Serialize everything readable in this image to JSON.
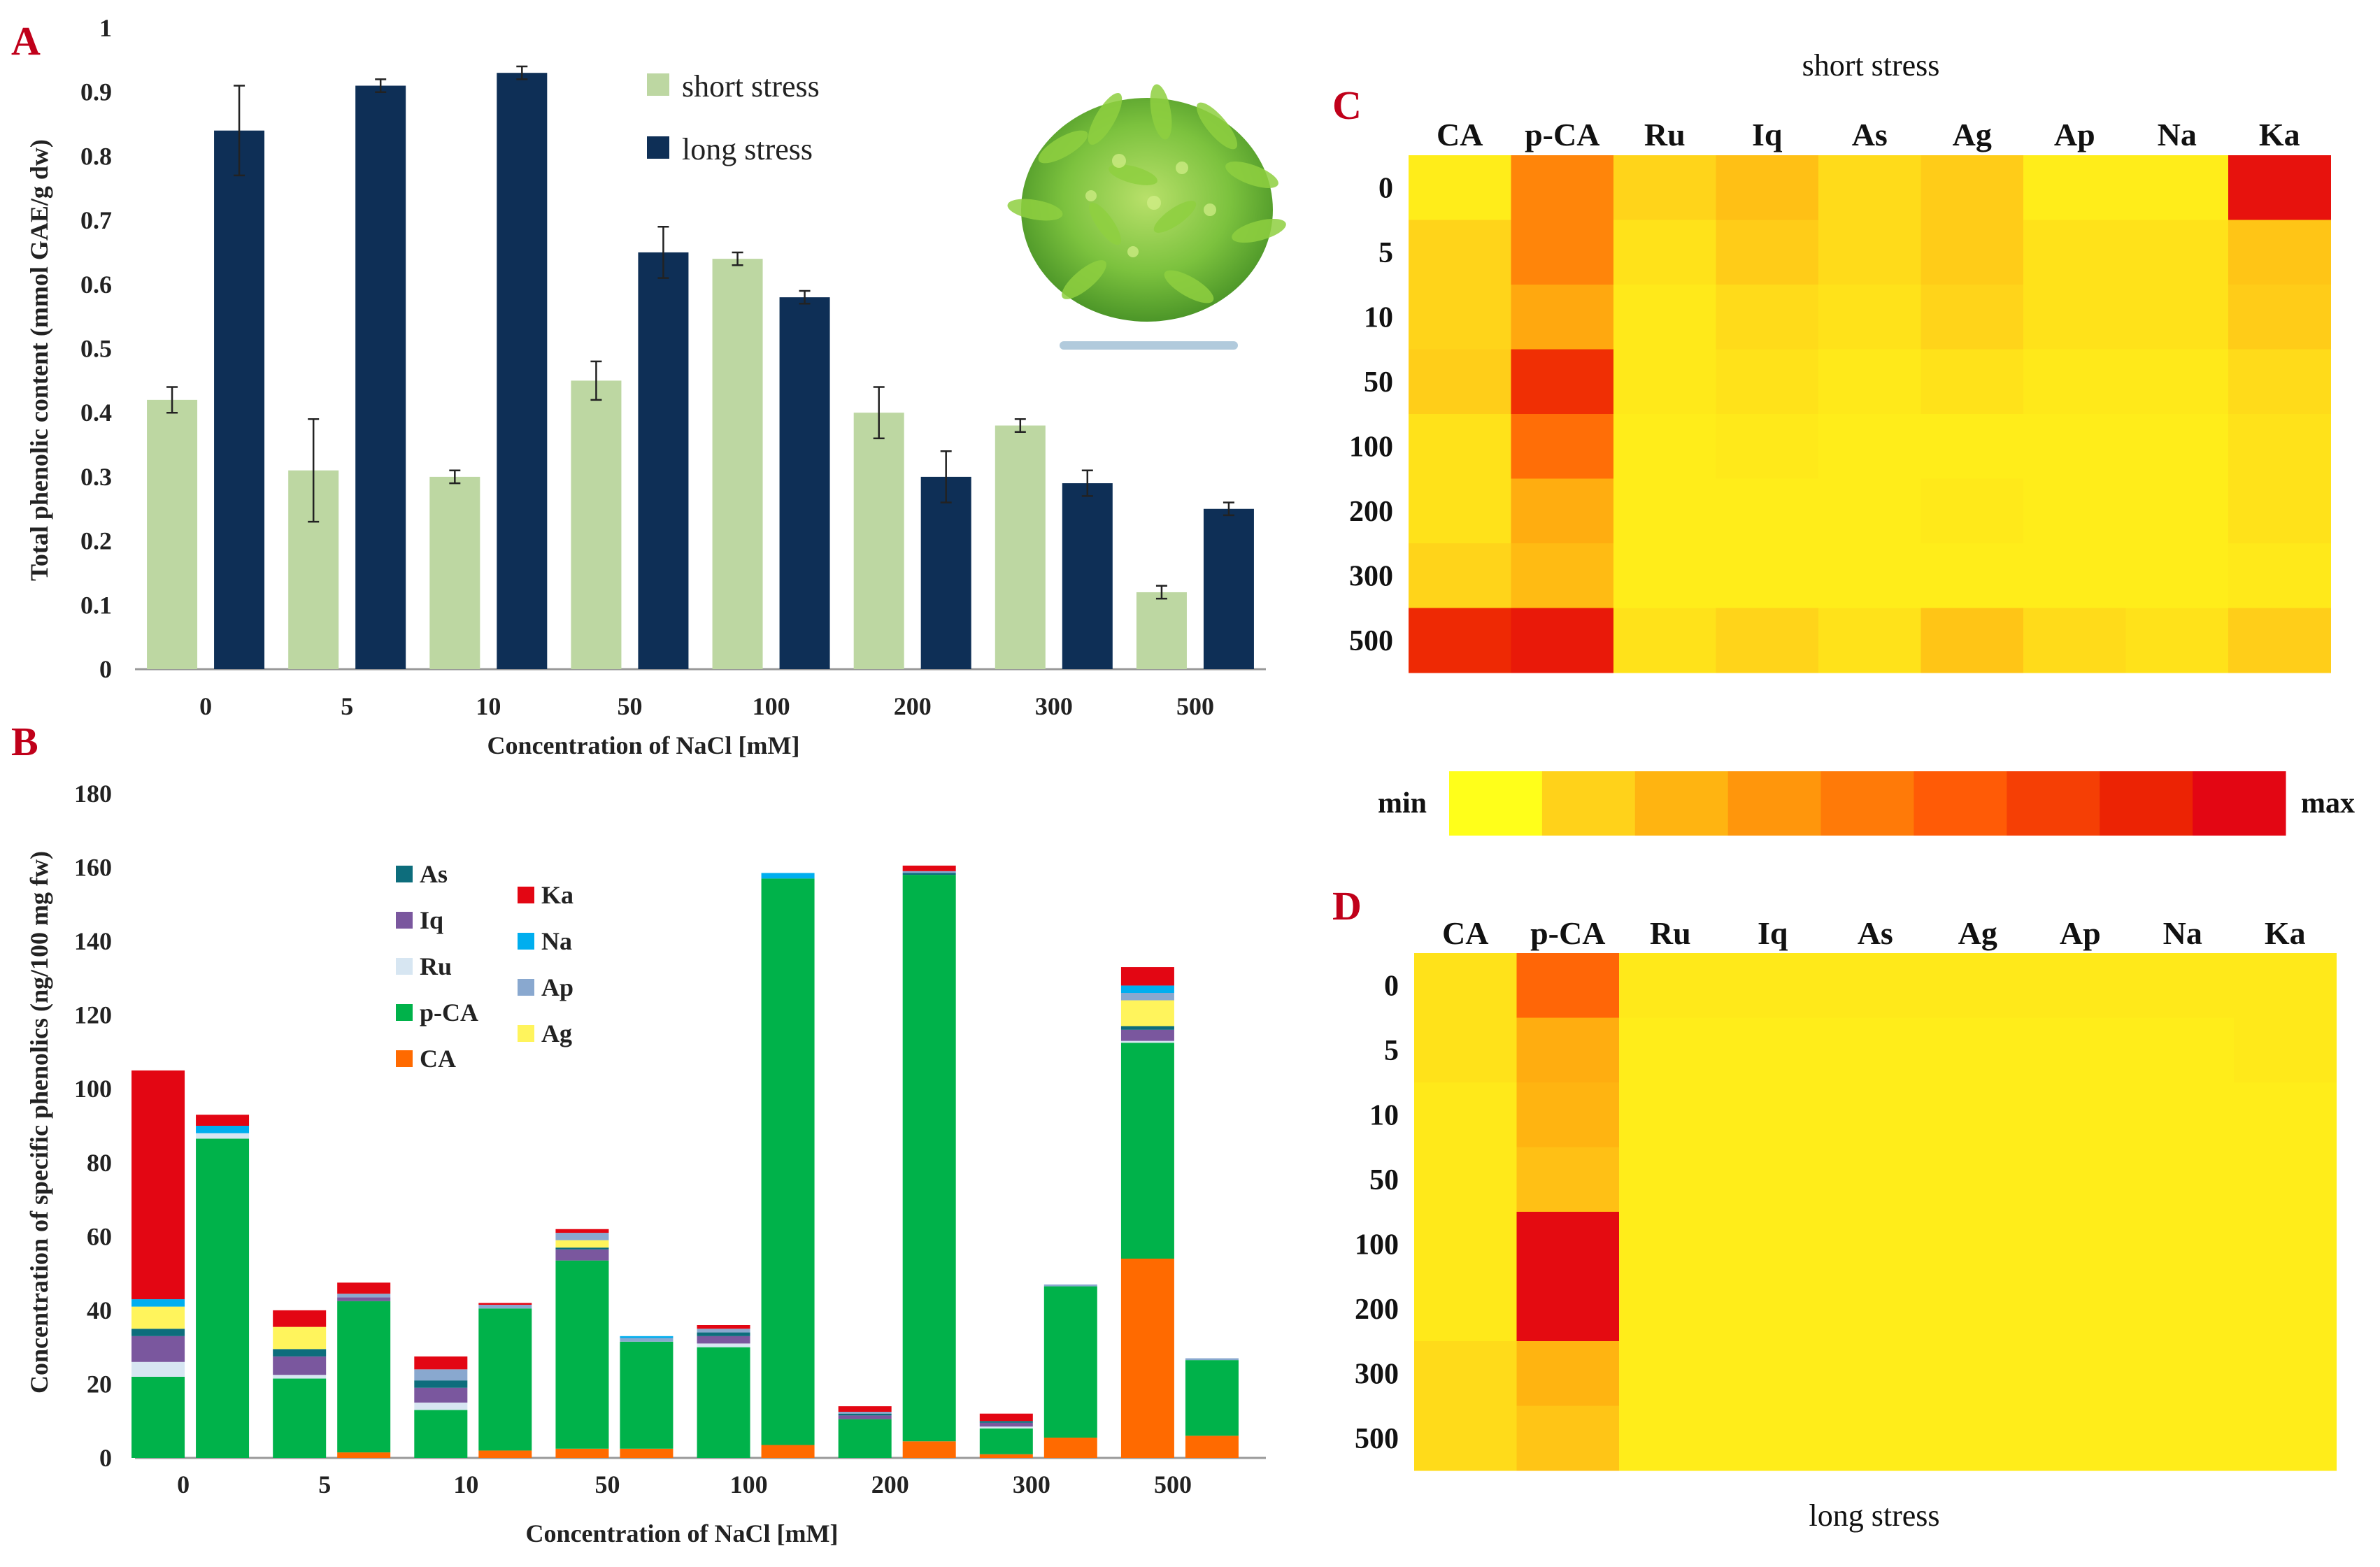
{
  "panels": {
    "A": "A",
    "B": "B",
    "C": "C",
    "D": "D"
  },
  "chart_data": [
    {
      "id": "A",
      "type": "bar",
      "title": "",
      "xlabel": "Concentration of NaCl [mM]",
      "ylabel": "Total phenolic content (mmol  GAE/g dw)",
      "categories": [
        "0",
        "5",
        "10",
        "50",
        "100",
        "200",
        "300",
        "500"
      ],
      "yticks": [
        "0",
        "0.1",
        "0.2",
        "0.3",
        "0.4",
        "0.5",
        "0.6",
        "0.7",
        "0.8",
        "0.9",
        "1"
      ],
      "ylim": [
        0,
        1
      ],
      "series": [
        {
          "name": "short stress",
          "color": "#bdd7a2",
          "values": [
            0.42,
            0.31,
            0.3,
            0.45,
            0.64,
            0.4,
            0.38,
            0.12
          ],
          "errors": [
            0.02,
            0.08,
            0.01,
            0.03,
            0.01,
            0.04,
            0.01,
            0.01
          ]
        },
        {
          "name": "long stress",
          "color": "#0e2f56",
          "values": [
            0.84,
            0.91,
            0.93,
            0.65,
            0.58,
            0.3,
            0.29,
            0.25
          ],
          "errors": [
            0.07,
            0.01,
            0.01,
            0.04,
            0.01,
            0.04,
            0.02,
            0.01
          ]
        }
      ],
      "legend_position": "top-right",
      "inset_image": "plant-photo"
    },
    {
      "id": "B",
      "type": "stacked-bar",
      "xlabel": "Concentration of NaCl [mM]",
      "ylabel": "Concentration of specific phenolics (ng/100 mg fw)",
      "categories": [
        "0",
        "5",
        "10",
        "50",
        "100",
        "200",
        "300",
        "500"
      ],
      "yticks": [
        "0",
        "20",
        "40",
        "60",
        "80",
        "100",
        "120",
        "140",
        "160",
        "180"
      ],
      "ylim": [
        0,
        180
      ],
      "stack_order": [
        "CA",
        "p-CA",
        "Ru",
        "Iq",
        "As",
        "Ag",
        "Ap",
        "Na",
        "Ka"
      ],
      "legend": [
        {
          "name": "As",
          "color": "#0d6d7c"
        },
        {
          "name": "Iq",
          "color": "#7a579e"
        },
        {
          "name": "Ru",
          "color": "#d7e6f2"
        },
        {
          "name": "p-CA",
          "color": "#00b24a"
        },
        {
          "name": "CA",
          "color": "#ff6a00"
        },
        {
          "name": "Ka",
          "color": "#e30613"
        },
        {
          "name": "Na",
          "color": "#00aeef"
        },
        {
          "name": "Ap",
          "color": "#89a8cf"
        },
        {
          "name": "Ag",
          "color": "#fff45c"
        }
      ],
      "short_stress": [
        {
          "CA": 0,
          "p-CA": 22,
          "Ru": 4,
          "Iq": 7,
          "As": 2,
          "Ag": 6,
          "Ap": 0,
          "Na": 2,
          "Ka": 62
        },
        {
          "CA": 0,
          "p-CA": 21.5,
          "Ru": 1,
          "Iq": 5,
          "As": 2,
          "Ag": 6,
          "Ap": 0,
          "Na": 0,
          "Ka": 4.5
        },
        {
          "CA": 0,
          "p-CA": 13,
          "Ru": 2,
          "Iq": 4,
          "As": 2,
          "Ag": 0,
          "Ap": 3,
          "Na": 0,
          "Ka": 3.5
        },
        {
          "CA": 2.5,
          "p-CA": 51,
          "Ru": 0,
          "Iq": 3,
          "As": 0.5,
          "Ag": 2,
          "Ap": 2,
          "Na": 0,
          "Ka": 1
        },
        {
          "CA": 0,
          "p-CA": 30,
          "Ru": 1,
          "Iq": 2,
          "As": 1,
          "Ag": 0,
          "Ap": 1,
          "Na": 0,
          "Ka": 1
        },
        {
          "CA": 0,
          "p-CA": 10.5,
          "Ru": 0,
          "Iq": 1,
          "As": 0.5,
          "Ag": 0,
          "Ap": 0.5,
          "Na": 0,
          "Ka": 1.5
        },
        {
          "CA": 1,
          "p-CA": 7,
          "Ru": 0.5,
          "Iq": 1,
          "As": 0.5,
          "Ag": 0,
          "Ap": 0,
          "Na": 0,
          "Ka": 2
        },
        {
          "CA": 54,
          "p-CA": 58.5,
          "Ru": 0.5,
          "Iq": 3,
          "As": 1,
          "Ag": 7,
          "Ap": 2,
          "Na": 2,
          "Ka": 5
        }
      ],
      "long_stress": [
        {
          "CA": 0,
          "p-CA": 86.5,
          "Ru": 1.5,
          "Iq": 0,
          "As": 0,
          "Ag": 0,
          "Ap": 0,
          "Na": 2,
          "Ka": 3
        },
        {
          "CA": 1.5,
          "p-CA": 41,
          "Ru": 0,
          "Iq": 1,
          "As": 0,
          "Ag": 0,
          "Ap": 1,
          "Na": 0,
          "Ka": 3
        },
        {
          "CA": 2,
          "p-CA": 38.5,
          "Ru": 0,
          "Iq": 0,
          "As": 0,
          "Ag": 0,
          "Ap": 1,
          "Na": 0,
          "Ka": 0.5
        },
        {
          "CA": 2.5,
          "p-CA": 29,
          "Ru": 0,
          "Iq": 0,
          "As": 0,
          "Ag": 0,
          "Ap": 1,
          "Na": 0.5,
          "Ka": 0
        },
        {
          "CA": 3.5,
          "p-CA": 153.5,
          "Ru": 0,
          "Iq": 0,
          "As": 0,
          "Ag": 0,
          "Ap": 0,
          "Na": 1.5,
          "Ka": 0
        },
        {
          "CA": 4.5,
          "p-CA": 153.5,
          "Ru": 0,
          "Iq": 0,
          "As": 0.5,
          "Ag": 0,
          "Ap": 0.5,
          "Na": 0,
          "Ka": 1.5
        },
        {
          "CA": 5.5,
          "p-CA": 41,
          "Ru": 0,
          "Iq": 0,
          "As": 0,
          "Ag": 0,
          "Ap": 0.5,
          "Na": 0,
          "Ka": 0
        },
        {
          "CA": 6,
          "p-CA": 20.5,
          "Ru": 0,
          "Iq": 0,
          "As": 0,
          "Ag": 0,
          "Ap": 0.5,
          "Na": 0,
          "Ka": 0
        }
      ]
    },
    {
      "id": "C",
      "type": "heatmap",
      "title": "short stress",
      "columns": [
        "CA",
        "p-CA",
        "Ru",
        "Iq",
        "As",
        "Ag",
        "Ap",
        "Na",
        "Ka"
      ],
      "rows": [
        "0",
        "5",
        "10",
        "50",
        "100",
        "200",
        "300",
        "500"
      ],
      "values": [
        [
          0.05,
          0.45,
          0.12,
          0.2,
          0.1,
          0.15,
          0.05,
          0.05,
          0.95
        ],
        [
          0.12,
          0.45,
          0.08,
          0.15,
          0.1,
          0.15,
          0.08,
          0.08,
          0.18
        ],
        [
          0.12,
          0.3,
          0.06,
          0.1,
          0.08,
          0.12,
          0.08,
          0.08,
          0.15
        ],
        [
          0.14,
          0.82,
          0.06,
          0.08,
          0.06,
          0.08,
          0.06,
          0.06,
          0.1
        ],
        [
          0.08,
          0.55,
          0.05,
          0.06,
          0.05,
          0.05,
          0.05,
          0.05,
          0.08
        ],
        [
          0.08,
          0.28,
          0.05,
          0.05,
          0.05,
          0.06,
          0.05,
          0.05,
          0.08
        ],
        [
          0.12,
          0.22,
          0.05,
          0.05,
          0.05,
          0.05,
          0.05,
          0.05,
          0.06
        ],
        [
          0.85,
          0.92,
          0.08,
          0.12,
          0.08,
          0.18,
          0.1,
          0.08,
          0.14
        ]
      ]
    },
    {
      "id": "D",
      "type": "heatmap",
      "title": "long stress",
      "columns": [
        "CA",
        "p-CA",
        "Ru",
        "Iq",
        "As",
        "Ag",
        "Ap",
        "Na",
        "Ka"
      ],
      "rows": [
        "0",
        "5",
        "10",
        "50",
        "100",
        "200",
        "300",
        "500"
      ],
      "values": [
        [
          0.08,
          0.58,
          0.06,
          0.06,
          0.06,
          0.06,
          0.06,
          0.06,
          0.06
        ],
        [
          0.08,
          0.28,
          0.05,
          0.05,
          0.05,
          0.05,
          0.05,
          0.05,
          0.06
        ],
        [
          0.06,
          0.25,
          0.05,
          0.05,
          0.05,
          0.05,
          0.05,
          0.05,
          0.05
        ],
        [
          0.06,
          0.2,
          0.05,
          0.05,
          0.05,
          0.05,
          0.05,
          0.05,
          0.05
        ],
        [
          0.06,
          0.98,
          0.05,
          0.05,
          0.05,
          0.05,
          0.05,
          0.05,
          0.05
        ],
        [
          0.06,
          0.98,
          0.05,
          0.05,
          0.05,
          0.05,
          0.05,
          0.05,
          0.05
        ],
        [
          0.1,
          0.25,
          0.05,
          0.05,
          0.05,
          0.05,
          0.05,
          0.05,
          0.05
        ],
        [
          0.1,
          0.18,
          0.05,
          0.05,
          0.05,
          0.05,
          0.05,
          0.05,
          0.05
        ]
      ]
    }
  ],
  "colorbar": {
    "min_label": "min",
    "max_label": "max",
    "colors": [
      "#ffff1a",
      "#ffd21a",
      "#ffb411",
      "#ff960c",
      "#ff7a08",
      "#ff5b06",
      "#f53f05",
      "#ec2304",
      "#e30613"
    ]
  }
}
